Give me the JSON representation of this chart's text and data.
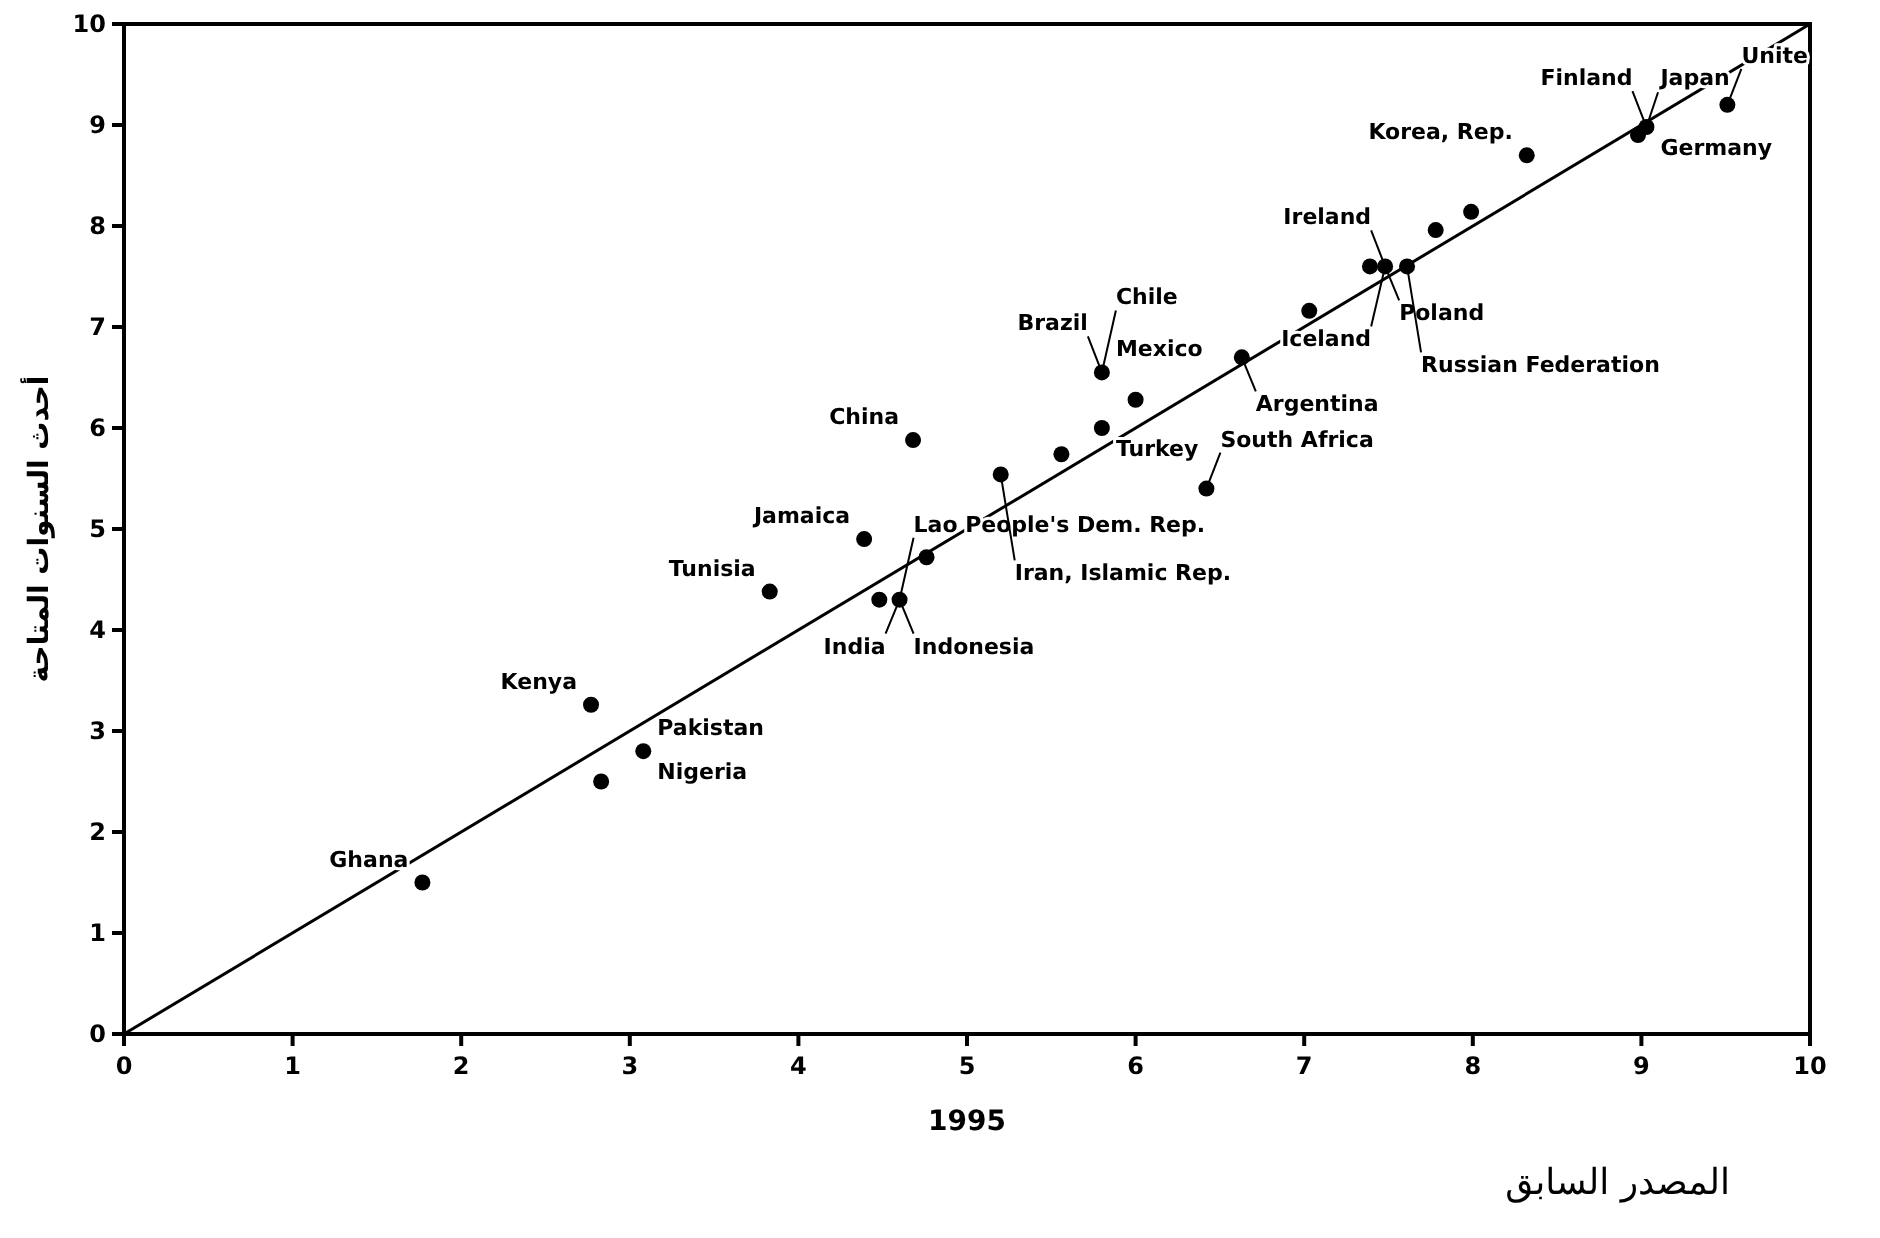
{
  "chart_data": {
    "type": "scatter",
    "xlabel": "1995",
    "ylabel": "أحدث السنوات المتاحة",
    "xlim": [
      0,
      10
    ],
    "ylim": [
      0,
      10
    ],
    "xticks": [
      0,
      1,
      2,
      3,
      4,
      5,
      6,
      7,
      8,
      9,
      10
    ],
    "yticks": [
      0,
      1,
      2,
      3,
      4,
      5,
      6,
      7,
      8,
      9,
      10
    ],
    "grid": false,
    "marker": "circle",
    "series": [
      {
        "type": "scatter",
        "color": "#000000",
        "x": [
          1.77,
          2.77,
          2.83,
          3.08,
          3.83,
          4.39,
          4.68,
          4.48,
          4.6,
          4.76,
          5.2,
          5.56,
          5.8,
          5.8,
          6.0,
          6.63,
          6.42,
          7.03,
          7.39,
          7.48,
          7.61,
          7.78,
          7.99,
          8.32,
          8.98,
          9.03,
          9.51
        ],
        "values": [
          1.5,
          3.26,
          2.5,
          2.8,
          4.38,
          4.9,
          5.88,
          4.3,
          4.3,
          4.72,
          5.54,
          5.74,
          6.0,
          6.55,
          6.28,
          6.7,
          5.4,
          7.16,
          7.6,
          7.6,
          7.6,
          7.96,
          8.14,
          8.7,
          8.9,
          8.98,
          9.2
        ]
      },
      {
        "type": "line",
        "color": "#000000",
        "line_style": "solid",
        "marker": "none",
        "x": [
          0,
          10
        ],
        "values": [
          0,
          10
        ]
      }
    ],
    "annotations": [
      {
        "text": "Ghana",
        "x": 1.77,
        "y": 1.5
      },
      {
        "text": "Kenya",
        "x": 2.77,
        "y": 3.26
      },
      {
        "text": "Pakistan",
        "x": 3.08,
        "y": 2.8
      },
      {
        "text": "Nigeria",
        "x": 3.08,
        "y": 2.8
      },
      {
        "text": "Tunisia",
        "x": 3.83,
        "y": 4.38
      },
      {
        "text": "Jamaica",
        "x": 4.39,
        "y": 4.9
      },
      {
        "text": "China",
        "x": 4.68,
        "y": 5.88
      },
      {
        "text": "Indonesia",
        "x": 4.6,
        "y": 4.3
      },
      {
        "text": "India",
        "x": 4.6,
        "y": 4.3
      },
      {
        "text": "Lao People's Dem. Rep.",
        "x": 4.6,
        "y": 4.3
      },
      {
        "text": "Iran, Islamic Rep.",
        "x": 5.2,
        "y": 5.54
      },
      {
        "text": "Mexico",
        "x": 5.8,
        "y": 6.55
      },
      {
        "text": "Brazil",
        "x": 5.8,
        "y": 6.55
      },
      {
        "text": "Chile",
        "x": 5.8,
        "y": 6.55
      },
      {
        "text": "Turkey",
        "x": 5.8,
        "y": 6.0
      },
      {
        "text": "Argentina",
        "x": 6.63,
        "y": 6.7
      },
      {
        "text": "South Africa",
        "x": 6.42,
        "y": 5.4
      },
      {
        "text": "Poland",
        "x": 7.48,
        "y": 7.6
      },
      {
        "text": "Ireland",
        "x": 7.48,
        "y": 7.6
      },
      {
        "text": "Iceland",
        "x": 7.48,
        "y": 7.6
      },
      {
        "text": "Russian Federation",
        "x": 7.61,
        "y": 7.6
      },
      {
        "text": "Korea, Rep.",
        "x": 8.32,
        "y": 8.7
      },
      {
        "text": "Germany",
        "x": 9.03,
        "y": 8.98
      },
      {
        "text": "Japan",
        "x": 9.03,
        "y": 8.98
      },
      {
        "text": "Finland",
        "x": 9.03,
        "y": 8.98
      },
      {
        "text": "Unite",
        "x": 9.51,
        "y": 9.2
      },
      "المصدر السابق"
    ]
  }
}
